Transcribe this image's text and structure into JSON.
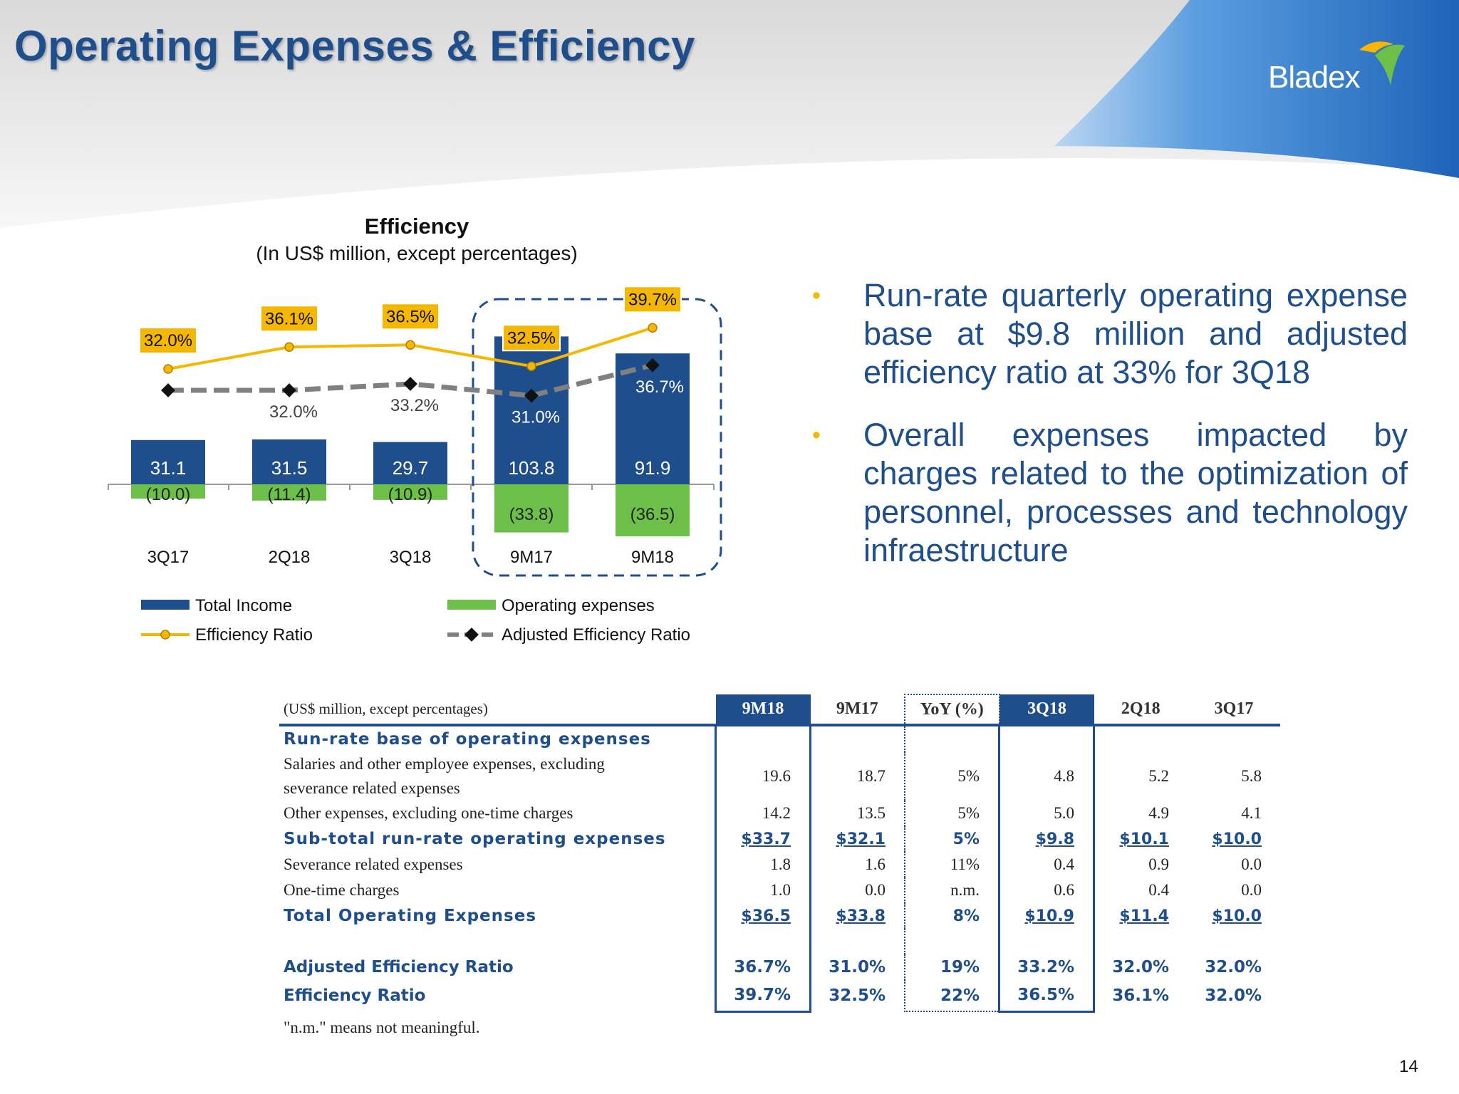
{
  "header": {
    "title": "Operating Expenses & Efficiency",
    "logo_text": "Bladex"
  },
  "chart": {
    "title": "Efficiency",
    "subtitle": "(In US$ million,  except percentages)",
    "legend": {
      "total_income": "Total Income",
      "operating_expenses": "Operating expenses",
      "efficiency_ratio": "Efficiency Ratio",
      "adjusted_efficiency_ratio": "Adjusted Efficiency Ratio"
    }
  },
  "chart_data": {
    "type": "bar",
    "categories": [
      "3Q17",
      "2Q18",
      "3Q18",
      "9M17",
      "9M18"
    ],
    "series": [
      {
        "name": "Total Income",
        "values": [
          31.1,
          31.5,
          29.7,
          103.8,
          91.9
        ],
        "labels": [
          "31.1",
          "31.5",
          "29.7",
          "103.8",
          "91.9"
        ]
      },
      {
        "name": "Operating expenses",
        "values": [
          -10.0,
          -11.4,
          -10.9,
          -33.8,
          -36.5
        ],
        "labels": [
          "(10.0)",
          "(11.4)",
          "(10.9)",
          "(33.8)",
          "(36.5)"
        ]
      },
      {
        "name": "Efficiency Ratio",
        "values": [
          32.0,
          36.1,
          36.5,
          32.5,
          39.7
        ],
        "labels": [
          "32.0%",
          "36.1%",
          "36.5%",
          "32.5%",
          "39.7%"
        ]
      },
      {
        "name": "Adjusted Efficiency Ratio",
        "values": [
          32.0,
          32.0,
          33.2,
          31.0,
          36.7
        ],
        "labels": [
          "",
          "32.0%",
          "33.2%",
          "31.0%",
          "36.7%"
        ]
      }
    ],
    "legend_position": "bottom",
    "colors": {
      "total_income": "#1f4e8c",
      "operating_expenses": "#6cc04a",
      "efficiency_ratio": "#f5b700",
      "adjusted_efficiency_ratio": "#808080"
    }
  },
  "bullets": [
    "Run-rate quarterly operating expense base at $9.8 million and adjusted efficiency ratio at 33% for 3Q18",
    "Overall expenses impacted by charges related to the optimization of personnel, processes and technology infraestructure"
  ],
  "table": {
    "caption": "(US$ million, except percentages)",
    "headers": [
      "9M18",
      "9M17",
      "YoY (%)",
      "3Q18",
      "2Q18",
      "3Q17"
    ],
    "section_title": "Run-rate base of operating expenses",
    "rows": [
      {
        "label_line1": "Salaries and other employee expenses, excluding",
        "label_line2": "severance related expenses",
        "values": [
          "19.6",
          "18.7",
          "5%",
          "4.8",
          "5.2",
          "5.8"
        ]
      },
      {
        "label": "Other expenses, excluding one-time charges",
        "values": [
          "14.2",
          "13.5",
          "5%",
          "5.0",
          "4.9",
          "4.1"
        ]
      },
      {
        "label": "Sub-total run-rate operating expenses",
        "values": [
          "$33.7",
          "$32.1",
          "5%",
          "$9.8",
          "$10.1",
          "$10.0"
        ]
      },
      {
        "label": "Severance related expenses",
        "values": [
          "1.8",
          "1.6",
          "11%",
          "0.4",
          "0.9",
          "0.0"
        ]
      },
      {
        "label": "One-time charges",
        "values": [
          "1.0",
          "0.0",
          "n.m.",
          "0.6",
          "0.4",
          "0.0"
        ]
      },
      {
        "label": "Total Operating Expenses",
        "values": [
          "$36.5",
          "$33.8",
          "8%",
          "$10.9",
          "$11.4",
          "$10.0"
        ]
      },
      {
        "label": "Adjusted Efficiency Ratio",
        "values": [
          "36.7%",
          "31.0%",
          "19%",
          "33.2%",
          "32.0%",
          "32.0%"
        ]
      },
      {
        "label": "Efficiency Ratio",
        "values": [
          "39.7%",
          "32.5%",
          "22%",
          "36.5%",
          "36.1%",
          "32.0%"
        ]
      }
    ],
    "footnote": "\"n.m.\" means not meaningful."
  },
  "page_number": "14"
}
